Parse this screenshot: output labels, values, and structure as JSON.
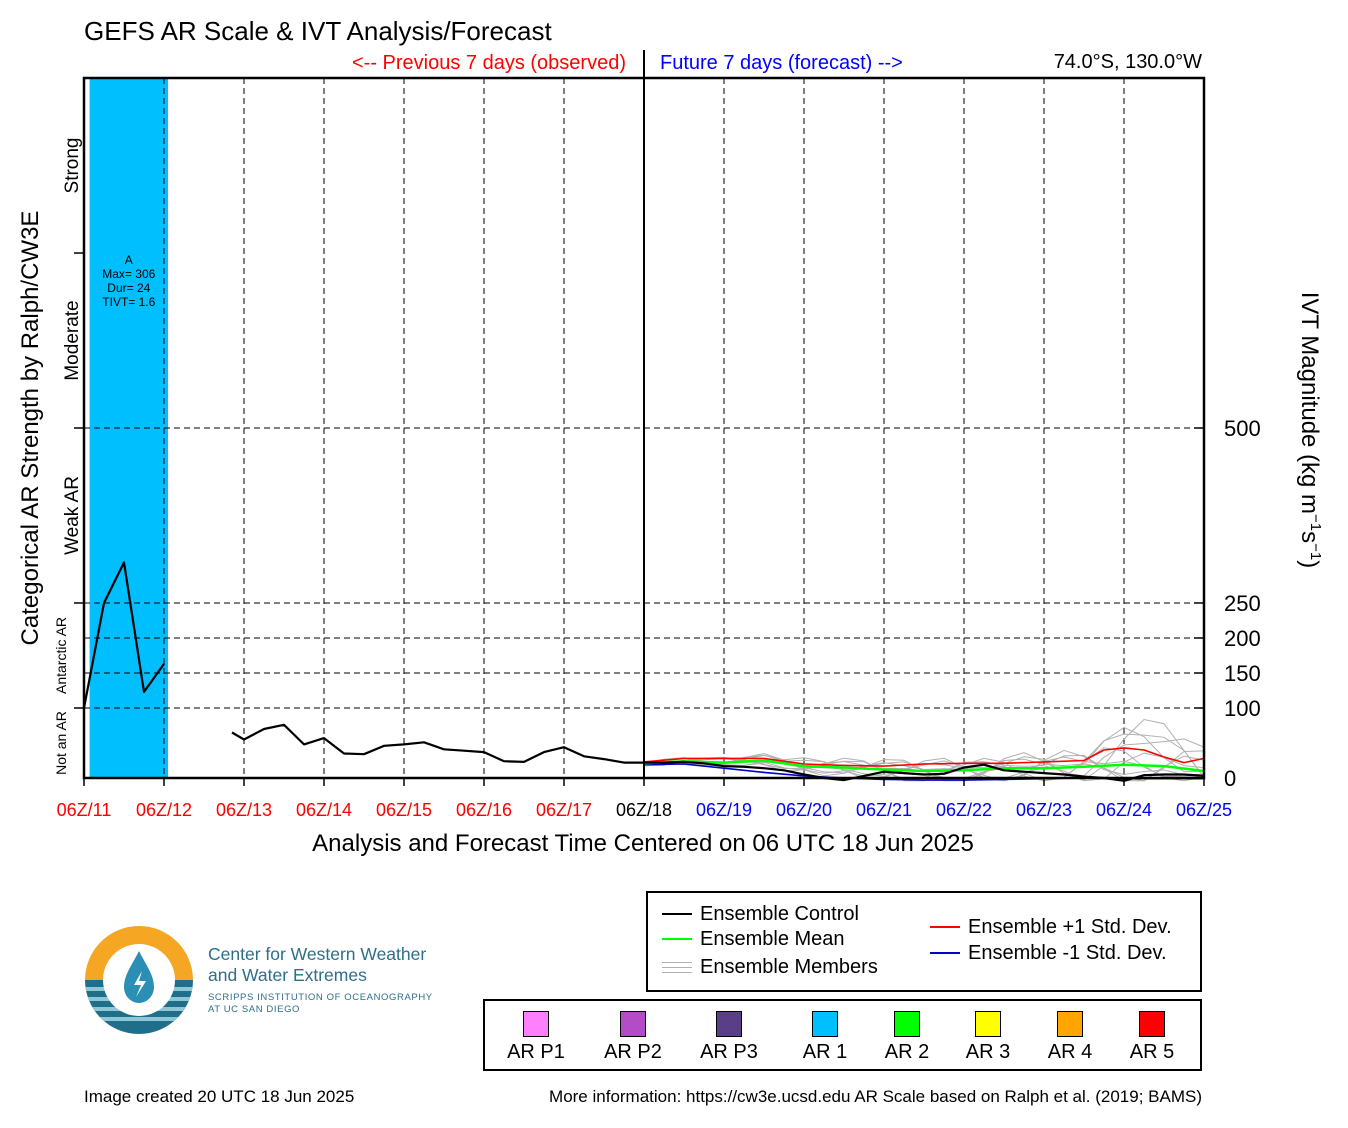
{
  "title": "GEFS AR Scale & IVT Analysis/Forecast",
  "subtitle_past": "<-- Previous 7 days (observed)",
  "subtitle_future": "Future 7 days (forecast) -->",
  "location": "74.0°S, 130.0°W",
  "colors": {
    "past": "#ff0000",
    "present": "#000000",
    "future": "#0000ff",
    "ar1_band": "#00bfff",
    "control": "#000000",
    "mean": "#00ff00",
    "plus_std": "#ff0000",
    "minus_std": "#0000cc",
    "members": "#b0b0b0"
  },
  "chart_data": {
    "type": "line",
    "title": "GEFS AR Scale & IVT Analysis/Forecast",
    "xlabel": "Analysis and Forecast Time Centered on 06 UTC 18 Jun 2025",
    "ylabel_left": "Categorical AR Strength by Ralph/CW3E",
    "ylabel_right": "IVT Magnitude (kg m",
    "ylabel_right_parts": [
      "IVT Magnitude (kg m",
      "−1",
      "s",
      "−1",
      ")"
    ],
    "x_unit": "days from 06Z/11 Jun 2025",
    "xlim": [
      0,
      14
    ],
    "ylim_ivt": [
      0,
      1000
    ],
    "y_ticks_right": [
      {
        "value": 0,
        "label": "0"
      },
      {
        "value": 100,
        "label": "100"
      },
      {
        "value": 150,
        "label": "150"
      },
      {
        "value": 200,
        "label": "200"
      },
      {
        "value": 250,
        "label": "250"
      },
      {
        "value": 500,
        "label": "500"
      }
    ],
    "x_ticks": [
      {
        "label": "06Z/11",
        "group": "past"
      },
      {
        "label": "06Z/12",
        "group": "past"
      },
      {
        "label": "06Z/13",
        "group": "past"
      },
      {
        "label": "06Z/14",
        "group": "past"
      },
      {
        "label": "06Z/15",
        "group": "past"
      },
      {
        "label": "06Z/16",
        "group": "past"
      },
      {
        "label": "06Z/17",
        "group": "past"
      },
      {
        "label": "06Z/18",
        "group": "present"
      },
      {
        "label": "06Z/19",
        "group": "future"
      },
      {
        "label": "06Z/20",
        "group": "future"
      },
      {
        "label": "06Z/21",
        "group": "future"
      },
      {
        "label": "06Z/22",
        "group": "future"
      },
      {
        "label": "06Z/23",
        "group": "future"
      },
      {
        "label": "06Z/24",
        "group": "future"
      },
      {
        "label": "06Z/25",
        "group": "future"
      }
    ],
    "categories_left": [
      {
        "label": "Not an AR",
        "from": 0,
        "to": 100
      },
      {
        "label": "Antarctic AR",
        "from": 100,
        "to": 250
      },
      {
        "label": "Weak AR",
        "from": 250,
        "to": 500
      },
      {
        "label": "Moderate",
        "from": 500,
        "to": 750
      },
      {
        "label": "Strong",
        "from": 750,
        "to": 1000
      }
    ],
    "ar_event": {
      "x_start": 0.07,
      "x_end": 1.05,
      "scale": "AR 1",
      "annotation": [
        "A",
        "Max= 306",
        "Dur= 24",
        "TIVT= 1.6"
      ]
    },
    "series": [
      {
        "name": "Ensemble Control",
        "segments": [
          [
            [
              0,
              100
            ],
            [
              0.25,
              250
            ],
            [
              0.5,
              308
            ],
            [
              0.75,
              123
            ],
            [
              1.0,
              163
            ]
          ],
          [
            [
              1.85,
              65
            ],
            [
              2.0,
              55
            ],
            [
              2.25,
              70
            ],
            [
              2.5,
              76
            ],
            [
              2.75,
              48
            ],
            [
              3.0,
              57
            ],
            [
              3.25,
              35
            ],
            [
              3.5,
              34
            ],
            [
              3.75,
              46
            ],
            [
              4.0,
              48
            ],
            [
              4.25,
              51
            ],
            [
              4.5,
              41
            ],
            [
              4.75,
              39
            ],
            [
              5.0,
              37
            ],
            [
              5.25,
              24
            ],
            [
              5.5,
              23
            ],
            [
              5.75,
              37
            ],
            [
              6.0,
              44
            ],
            [
              6.25,
              31
            ],
            [
              6.5,
              27
            ],
            [
              6.75,
              22
            ],
            [
              7.0,
              22
            ],
            [
              7.25,
              22
            ],
            [
              7.5,
              23
            ],
            [
              7.75,
              21
            ],
            [
              8.0,
              17
            ],
            [
              8.25,
              16
            ],
            [
              8.5,
              14
            ],
            [
              8.75,
              11
            ],
            [
              9.0,
              5
            ],
            [
              9.25,
              0
            ],
            [
              9.5,
              -3
            ],
            [
              9.75,
              3
            ],
            [
              10.0,
              9
            ],
            [
              10.25,
              7
            ],
            [
              10.5,
              5
            ],
            [
              10.75,
              6
            ],
            [
              11.0,
              15
            ],
            [
              11.25,
              19
            ],
            [
              11.5,
              11
            ],
            [
              11.75,
              9
            ],
            [
              12.0,
              7
            ],
            [
              12.25,
              5
            ],
            [
              12.5,
              2
            ],
            [
              12.75,
              0
            ],
            [
              13.0,
              -4
            ],
            [
              13.25,
              4
            ],
            [
              13.5,
              5
            ],
            [
              13.75,
              5
            ],
            [
              14.0,
              3
            ]
          ]
        ]
      },
      {
        "name": "Ensemble Mean",
        "segments": [
          [
            [
              7.0,
              21
            ],
            [
              7.5,
              24
            ],
            [
              8.0,
              22
            ],
            [
              8.5,
              25
            ],
            [
              9.0,
              17
            ],
            [
              9.5,
              15
            ],
            [
              10.0,
              12
            ],
            [
              10.5,
              10
            ],
            [
              11.0,
              11
            ],
            [
              11.5,
              14
            ],
            [
              12.0,
              14
            ],
            [
              12.5,
              16
            ],
            [
              13.0,
              19
            ],
            [
              13.5,
              17
            ],
            [
              14.0,
              10
            ]
          ]
        ]
      },
      {
        "name": "Ensemble +1 Std. Dev.",
        "segments": [
          [
            [
              7.0,
              23
            ],
            [
              7.5,
              28
            ],
            [
              8.0,
              28
            ],
            [
              8.5,
              28
            ],
            [
              9.0,
              20
            ],
            [
              9.5,
              18
            ],
            [
              10.0,
              17
            ],
            [
              10.5,
              20
            ],
            [
              11.0,
              21
            ],
            [
              11.5,
              21
            ],
            [
              12.0,
              23
            ],
            [
              12.5,
              25
            ],
            [
              12.75,
              40
            ],
            [
              13.0,
              43
            ],
            [
              13.25,
              40
            ],
            [
              13.5,
              30
            ],
            [
              13.75,
              22
            ],
            [
              14.0,
              28
            ]
          ]
        ]
      },
      {
        "name": "Ensemble -1 Std. Dev.",
        "segments": [
          [
            [
              7.0,
              19
            ],
            [
              7.5,
              20
            ],
            [
              8.0,
              14
            ],
            [
              8.5,
              8
            ],
            [
              9.0,
              3
            ],
            [
              9.5,
              0
            ],
            [
              10.0,
              -2
            ],
            [
              10.5,
              -3
            ],
            [
              11.0,
              -3
            ],
            [
              11.5,
              -2
            ],
            [
              12.0,
              -1
            ],
            [
              12.5,
              0
            ],
            [
              13.0,
              -1
            ],
            [
              13.5,
              -1
            ],
            [
              14.0,
              -1
            ]
          ]
        ]
      }
    ]
  },
  "legend": {
    "control": "Ensemble Control",
    "mean": "Ensemble Mean",
    "members": "Ensemble Members",
    "plus_std": "Ensemble +1 Std. Dev.",
    "minus_std": "Ensemble -1 Std. Dev."
  },
  "ar_scale": [
    {
      "label": "AR P1",
      "color": "#ff80ff"
    },
    {
      "label": "AR P2",
      "color": "#b44cc8"
    },
    {
      "label": "AR P3",
      "color": "#5a3e88"
    },
    {
      "label": "AR 1",
      "color": "#00bfff"
    },
    {
      "label": "AR 2",
      "color": "#00ff00"
    },
    {
      "label": "AR 3",
      "color": "#ffff00"
    },
    {
      "label": "AR 4",
      "color": "#ffa500"
    },
    {
      "label": "AR 5",
      "color": "#ff0000"
    }
  ],
  "logo": {
    "line1": "Center for Western Weather",
    "line2": "and Water Extremes",
    "line3": "SCRIPPS INSTITUTION OF OCEANOGRAPHY",
    "line4": "AT UC SAN DIEGO"
  },
  "footer": {
    "created": "Image created 20 UTC 18 Jun 2025",
    "more_info": "More information: https://cw3e.ucsd.edu AR Scale based on Ralph et al. (2019; BAMS)"
  }
}
